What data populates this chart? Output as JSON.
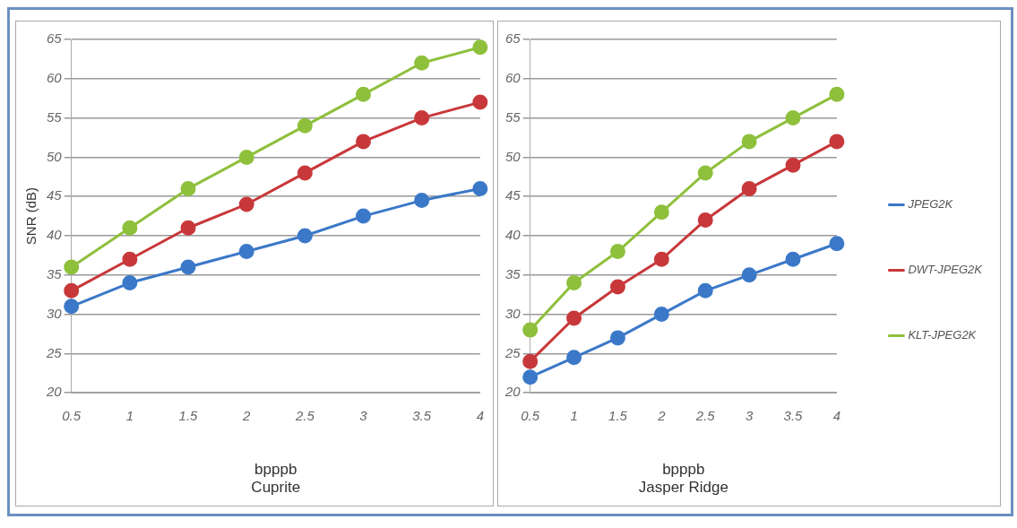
{
  "chart_data": [
    {
      "type": "line",
      "ylabel": "SNR (dB)",
      "xlabel": "bpppb",
      "annotations": [
        "Cuprite"
      ],
      "categories": [
        "0.5",
        "1",
        "1.5",
        "2",
        "2.5",
        "3",
        "3.5",
        "4"
      ],
      "ylim": [
        20,
        65
      ],
      "yticks": [
        20,
        25,
        30,
        35,
        40,
        45,
        50,
        55,
        60,
        65
      ],
      "grid": "y",
      "legend": false,
      "marker": "circle",
      "line_style": "solid",
      "series": [
        {
          "color": "#3b78c8",
          "values": [
            31,
            34,
            36,
            38,
            40,
            42.5,
            44.5,
            46
          ]
        },
        {
          "color": "#c8383a",
          "values": [
            33,
            37,
            41,
            44,
            48,
            52,
            55,
            57
          ]
        },
        {
          "color": "#8ec03c",
          "values": [
            36,
            41,
            46,
            50,
            54,
            58,
            62,
            64
          ]
        }
      ]
    },
    {
      "type": "line",
      "xlabel": "bpppb",
      "annotations": [
        "Jasper Ridge"
      ],
      "categories": [
        "0.5",
        "1",
        "1.5",
        "2",
        "2.5",
        "3",
        "3.5",
        "4"
      ],
      "ylim": [
        20,
        65
      ],
      "yticks": [
        20,
        25,
        30,
        35,
        40,
        45,
        50,
        55,
        60,
        65
      ],
      "grid": "y",
      "legend": "right",
      "marker": "circle",
      "line_style": "solid",
      "series": [
        {
          "name": "JPEG2K",
          "color": "#3b78c8",
          "values": [
            22,
            24.5,
            27,
            30,
            33,
            35,
            37,
            39
          ]
        },
        {
          "name": "DWT-JPEG2K",
          "color": "#c8383a",
          "values": [
            24,
            29.5,
            33.5,
            37,
            42,
            46,
            49,
            52
          ]
        },
        {
          "name": "KLT-JPEG2K",
          "color": "#8ec03c",
          "values": [
            28,
            34,
            38,
            43,
            48,
            52,
            55,
            58
          ]
        }
      ]
    }
  ]
}
